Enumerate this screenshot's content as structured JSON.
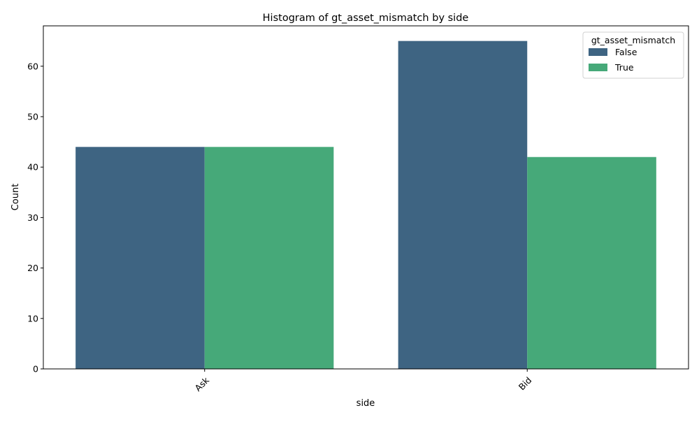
{
  "chart_data": {
    "type": "bar",
    "title": "Histogram of gt_asset_mismatch by side",
    "xlabel": "side",
    "ylabel": "Count",
    "categories": [
      "Ask",
      "Bid"
    ],
    "series": [
      {
        "name": "False",
        "values": [
          44,
          65
        ],
        "color": "#3e6482"
      },
      {
        "name": "True",
        "values": [
          44,
          42
        ],
        "color": "#46a979"
      }
    ],
    "ylim": [
      0,
      68
    ],
    "yticks": [
      0,
      10,
      20,
      30,
      40,
      50,
      60
    ],
    "legend": {
      "title": "gt_asset_mismatch",
      "placement": "top-right"
    },
    "grid": false,
    "xtick_rotation_deg": 45
  }
}
